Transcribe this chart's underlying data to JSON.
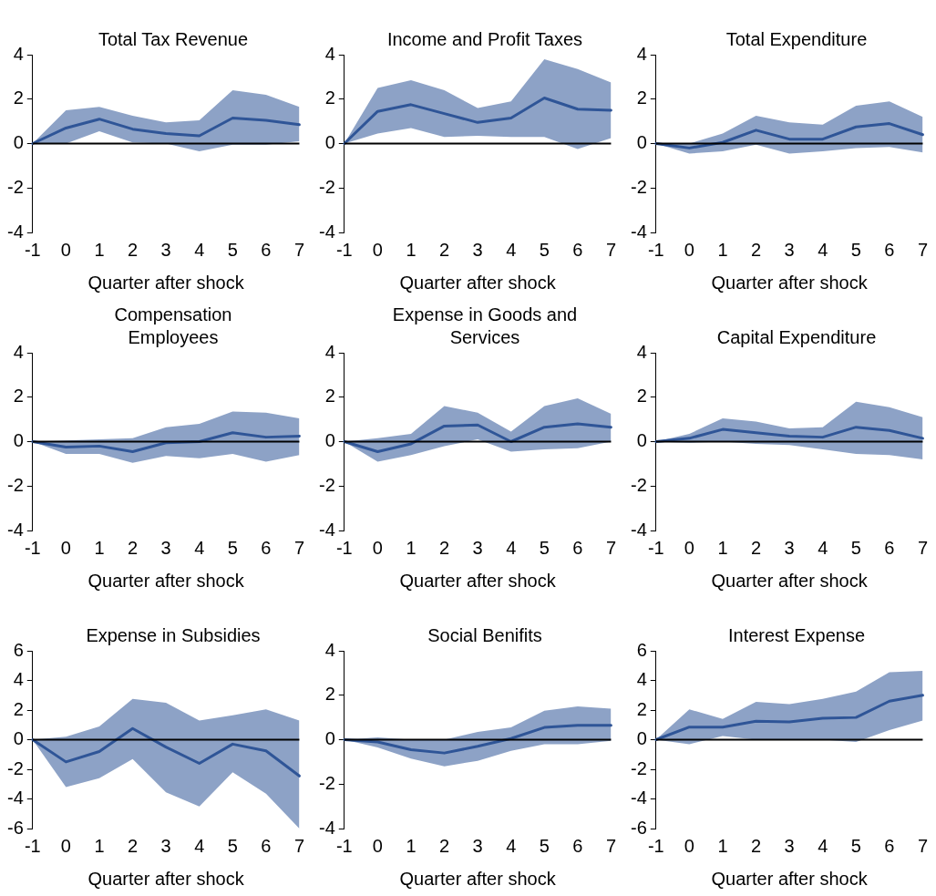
{
  "chart_data": [
    {
      "type": "line",
      "title": "Total Tax Revenue",
      "xlabel": "Quarter after shock",
      "categories": [
        "-1",
        "0",
        "1",
        "2",
        "3",
        "4",
        "5",
        "6",
        "7"
      ],
      "ylim": [
        -4,
        4
      ],
      "yticks": [
        -4,
        -2,
        0,
        2,
        4
      ],
      "grid": false,
      "legend": false,
      "ref_lines": [
        {
          "axis": "y",
          "value": 0,
          "color": "#000000"
        }
      ],
      "series": [
        {
          "color": "#2f5597",
          "values": [
            0,
            0.7,
            1.1,
            0.65,
            0.45,
            0.35,
            1.15,
            1.05,
            0.85
          ],
          "lower": [
            0,
            0.0,
            0.55,
            0.05,
            0.0,
            -0.35,
            -0.05,
            -0.05,
            0.1
          ],
          "upper": [
            0,
            1.5,
            1.65,
            1.25,
            0.95,
            1.05,
            2.4,
            2.2,
            1.65
          ]
        }
      ]
    },
    {
      "type": "line",
      "title": "Income and Profit Taxes",
      "xlabel": "Quarter after shock",
      "categories": [
        "-1",
        "0",
        "1",
        "2",
        "3",
        "4",
        "5",
        "6",
        "7"
      ],
      "ylim": [
        -4,
        4
      ],
      "yticks": [
        -4,
        -2,
        0,
        2,
        4
      ],
      "grid": false,
      "legend": false,
      "ref_lines": [
        {
          "axis": "y",
          "value": 0,
          "color": "#000000"
        }
      ],
      "series": [
        {
          "color": "#2f5597",
          "values": [
            0,
            1.45,
            1.75,
            1.35,
            0.95,
            1.15,
            2.05,
            1.55,
            1.5
          ],
          "lower": [
            0,
            0.45,
            0.7,
            0.3,
            0.35,
            0.3,
            0.3,
            -0.25,
            0.25
          ],
          "upper": [
            0,
            2.5,
            2.85,
            2.4,
            1.6,
            1.9,
            3.8,
            3.35,
            2.75
          ]
        }
      ]
    },
    {
      "type": "line",
      "title": "Total Expenditure",
      "xlabel": "Quarter after shock",
      "categories": [
        "-1",
        "0",
        "1",
        "2",
        "3",
        "4",
        "5",
        "6",
        "7"
      ],
      "ylim": [
        -4,
        4
      ],
      "yticks": [
        -4,
        -2,
        0,
        2,
        4
      ],
      "grid": false,
      "legend": false,
      "ref_lines": [
        {
          "axis": "y",
          "value": 0,
          "color": "#000000"
        }
      ],
      "series": [
        {
          "color": "#2f5597",
          "values": [
            0,
            -0.2,
            0.05,
            0.6,
            0.2,
            0.2,
            0.75,
            0.9,
            0.4
          ],
          "lower": [
            0,
            -0.45,
            -0.35,
            -0.05,
            -0.45,
            -0.35,
            -0.2,
            -0.15,
            -0.4
          ],
          "upper": [
            0,
            0.0,
            0.45,
            1.25,
            0.95,
            0.85,
            1.7,
            1.9,
            1.2
          ]
        }
      ]
    },
    {
      "type": "line",
      "title": "Compensation Employees",
      "xlabel": "Quarter after shock",
      "categories": [
        "-1",
        "0",
        "1",
        "2",
        "3",
        "4",
        "5",
        "6",
        "7"
      ],
      "ylim": [
        -4,
        4
      ],
      "yticks": [
        -4,
        -2,
        0,
        2,
        4
      ],
      "grid": false,
      "legend": false,
      "ref_lines": [
        {
          "axis": "y",
          "value": 0,
          "color": "#000000"
        }
      ],
      "series": [
        {
          "color": "#2f5597",
          "values": [
            0,
            -0.25,
            -0.2,
            -0.45,
            -0.05,
            0.0,
            0.4,
            0.2,
            0.25
          ],
          "lower": [
            0,
            -0.55,
            -0.55,
            -0.95,
            -0.65,
            -0.75,
            -0.55,
            -0.9,
            -0.6
          ],
          "upper": [
            0,
            0.05,
            0.1,
            0.15,
            0.65,
            0.8,
            1.35,
            1.3,
            1.05
          ]
        }
      ]
    },
    {
      "type": "line",
      "title": "Expense in Goods and Services",
      "xlabel": "Quarter after shock",
      "categories": [
        "-1",
        "0",
        "1",
        "2",
        "3",
        "4",
        "5",
        "6",
        "7"
      ],
      "ylim": [
        -4,
        4
      ],
      "yticks": [
        -4,
        -2,
        0,
        2,
        4
      ],
      "grid": false,
      "legend": false,
      "ref_lines": [
        {
          "axis": "y",
          "value": 0,
          "color": "#000000"
        }
      ],
      "series": [
        {
          "color": "#2f5597",
          "values": [
            0,
            -0.45,
            -0.1,
            0.7,
            0.75,
            0.0,
            0.65,
            0.8,
            0.65
          ],
          "lower": [
            0,
            -0.9,
            -0.6,
            -0.2,
            0.1,
            -0.45,
            -0.35,
            -0.3,
            0.0
          ],
          "upper": [
            0,
            0.15,
            0.35,
            1.6,
            1.3,
            0.45,
            1.6,
            1.95,
            1.25
          ]
        }
      ]
    },
    {
      "type": "line",
      "title": "Capital Expenditure",
      "xlabel": "Quarter after shock",
      "categories": [
        "-1",
        "0",
        "1",
        "2",
        "3",
        "4",
        "5",
        "6",
        "7"
      ],
      "ylim": [
        -4,
        4
      ],
      "yticks": [
        -4,
        -2,
        0,
        2,
        4
      ],
      "grid": false,
      "legend": false,
      "ref_lines": [
        {
          "axis": "y",
          "value": 0,
          "color": "#000000"
        }
      ],
      "series": [
        {
          "color": "#2f5597",
          "values": [
            0,
            0.15,
            0.55,
            0.4,
            0.25,
            0.2,
            0.65,
            0.5,
            0.15
          ],
          "lower": [
            0,
            -0.05,
            0.0,
            -0.1,
            -0.15,
            -0.35,
            -0.55,
            -0.6,
            -0.8
          ],
          "upper": [
            0,
            0.35,
            1.05,
            0.9,
            0.6,
            0.65,
            1.8,
            1.55,
            1.1
          ]
        }
      ]
    },
    {
      "type": "line",
      "title": "Expense in Subsidies",
      "xlabel": "Quarter after shock",
      "categories": [
        "-1",
        "0",
        "1",
        "2",
        "3",
        "4",
        "5",
        "6",
        "7"
      ],
      "ylim": [
        -6,
        6
      ],
      "yticks": [
        -6,
        -4,
        -2,
        0,
        2,
        4,
        6
      ],
      "grid": false,
      "legend": false,
      "ref_lines": [
        {
          "axis": "y",
          "value": 0,
          "color": "#000000"
        }
      ],
      "series": [
        {
          "color": "#2f5597",
          "values": [
            0,
            -1.5,
            -0.8,
            0.75,
            -0.5,
            -1.6,
            -0.3,
            -0.75,
            -2.45
          ],
          "lower": [
            0,
            -3.2,
            -2.6,
            -1.3,
            -3.55,
            -4.5,
            -2.2,
            -3.65,
            -6.0
          ],
          "upper": [
            0,
            0.2,
            0.9,
            2.75,
            2.5,
            1.3,
            1.65,
            2.05,
            1.3
          ]
        }
      ]
    },
    {
      "type": "line",
      "title": "Social Benifits",
      "xlabel": "Quarter after shock",
      "categories": [
        "-1",
        "0",
        "1",
        "2",
        "3",
        "4",
        "5",
        "6",
        "7"
      ],
      "ylim": [
        -4,
        4
      ],
      "yticks": [
        -4,
        -2,
        0,
        2,
        4
      ],
      "grid": false,
      "legend": false,
      "ref_lines": [
        {
          "axis": "y",
          "value": 0,
          "color": "#000000"
        }
      ],
      "series": [
        {
          "color": "#2f5597",
          "values": [
            0,
            -0.1,
            -0.45,
            -0.6,
            -0.3,
            0.05,
            0.55,
            0.65,
            0.65
          ],
          "lower": [
            0,
            -0.35,
            -0.85,
            -1.2,
            -0.95,
            -0.5,
            -0.2,
            -0.2,
            -0.05
          ],
          "upper": [
            0,
            0.1,
            0.0,
            0.0,
            0.35,
            0.55,
            1.3,
            1.5,
            1.4
          ]
        }
      ]
    },
    {
      "type": "line",
      "title": "Interest Expense",
      "xlabel": "Quarter after shock",
      "categories": [
        "-1",
        "0",
        "1",
        "2",
        "3",
        "4",
        "5",
        "6",
        "7"
      ],
      "ylim": [
        -6,
        6
      ],
      "yticks": [
        -6,
        -4,
        -2,
        0,
        2,
        4,
        6
      ],
      "grid": false,
      "legend": false,
      "ref_lines": [
        {
          "axis": "y",
          "value": 0,
          "color": "#000000"
        }
      ],
      "series": [
        {
          "color": "#2f5597",
          "values": [
            0,
            0.85,
            0.85,
            1.25,
            1.2,
            1.45,
            1.5,
            2.6,
            3.0
          ],
          "lower": [
            0,
            -0.3,
            0.25,
            0.0,
            0.0,
            0.0,
            -0.15,
            0.65,
            1.3
          ],
          "upper": [
            0,
            2.05,
            1.4,
            2.55,
            2.4,
            2.75,
            3.25,
            4.55,
            4.65
          ]
        }
      ]
    }
  ]
}
